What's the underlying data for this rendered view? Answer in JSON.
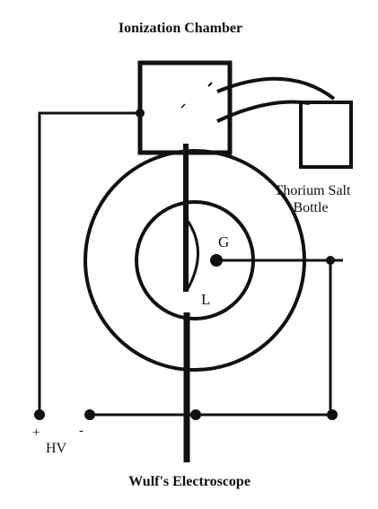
{
  "labels": {
    "title": "Ionization Chamber",
    "bottle_line1": "Thorium Salt",
    "bottle_line2": "Bottle",
    "g": "G",
    "l": "L",
    "plus": "+",
    "minus": "-",
    "hv": "HV",
    "caption": "Wulf's Electroscope"
  }
}
